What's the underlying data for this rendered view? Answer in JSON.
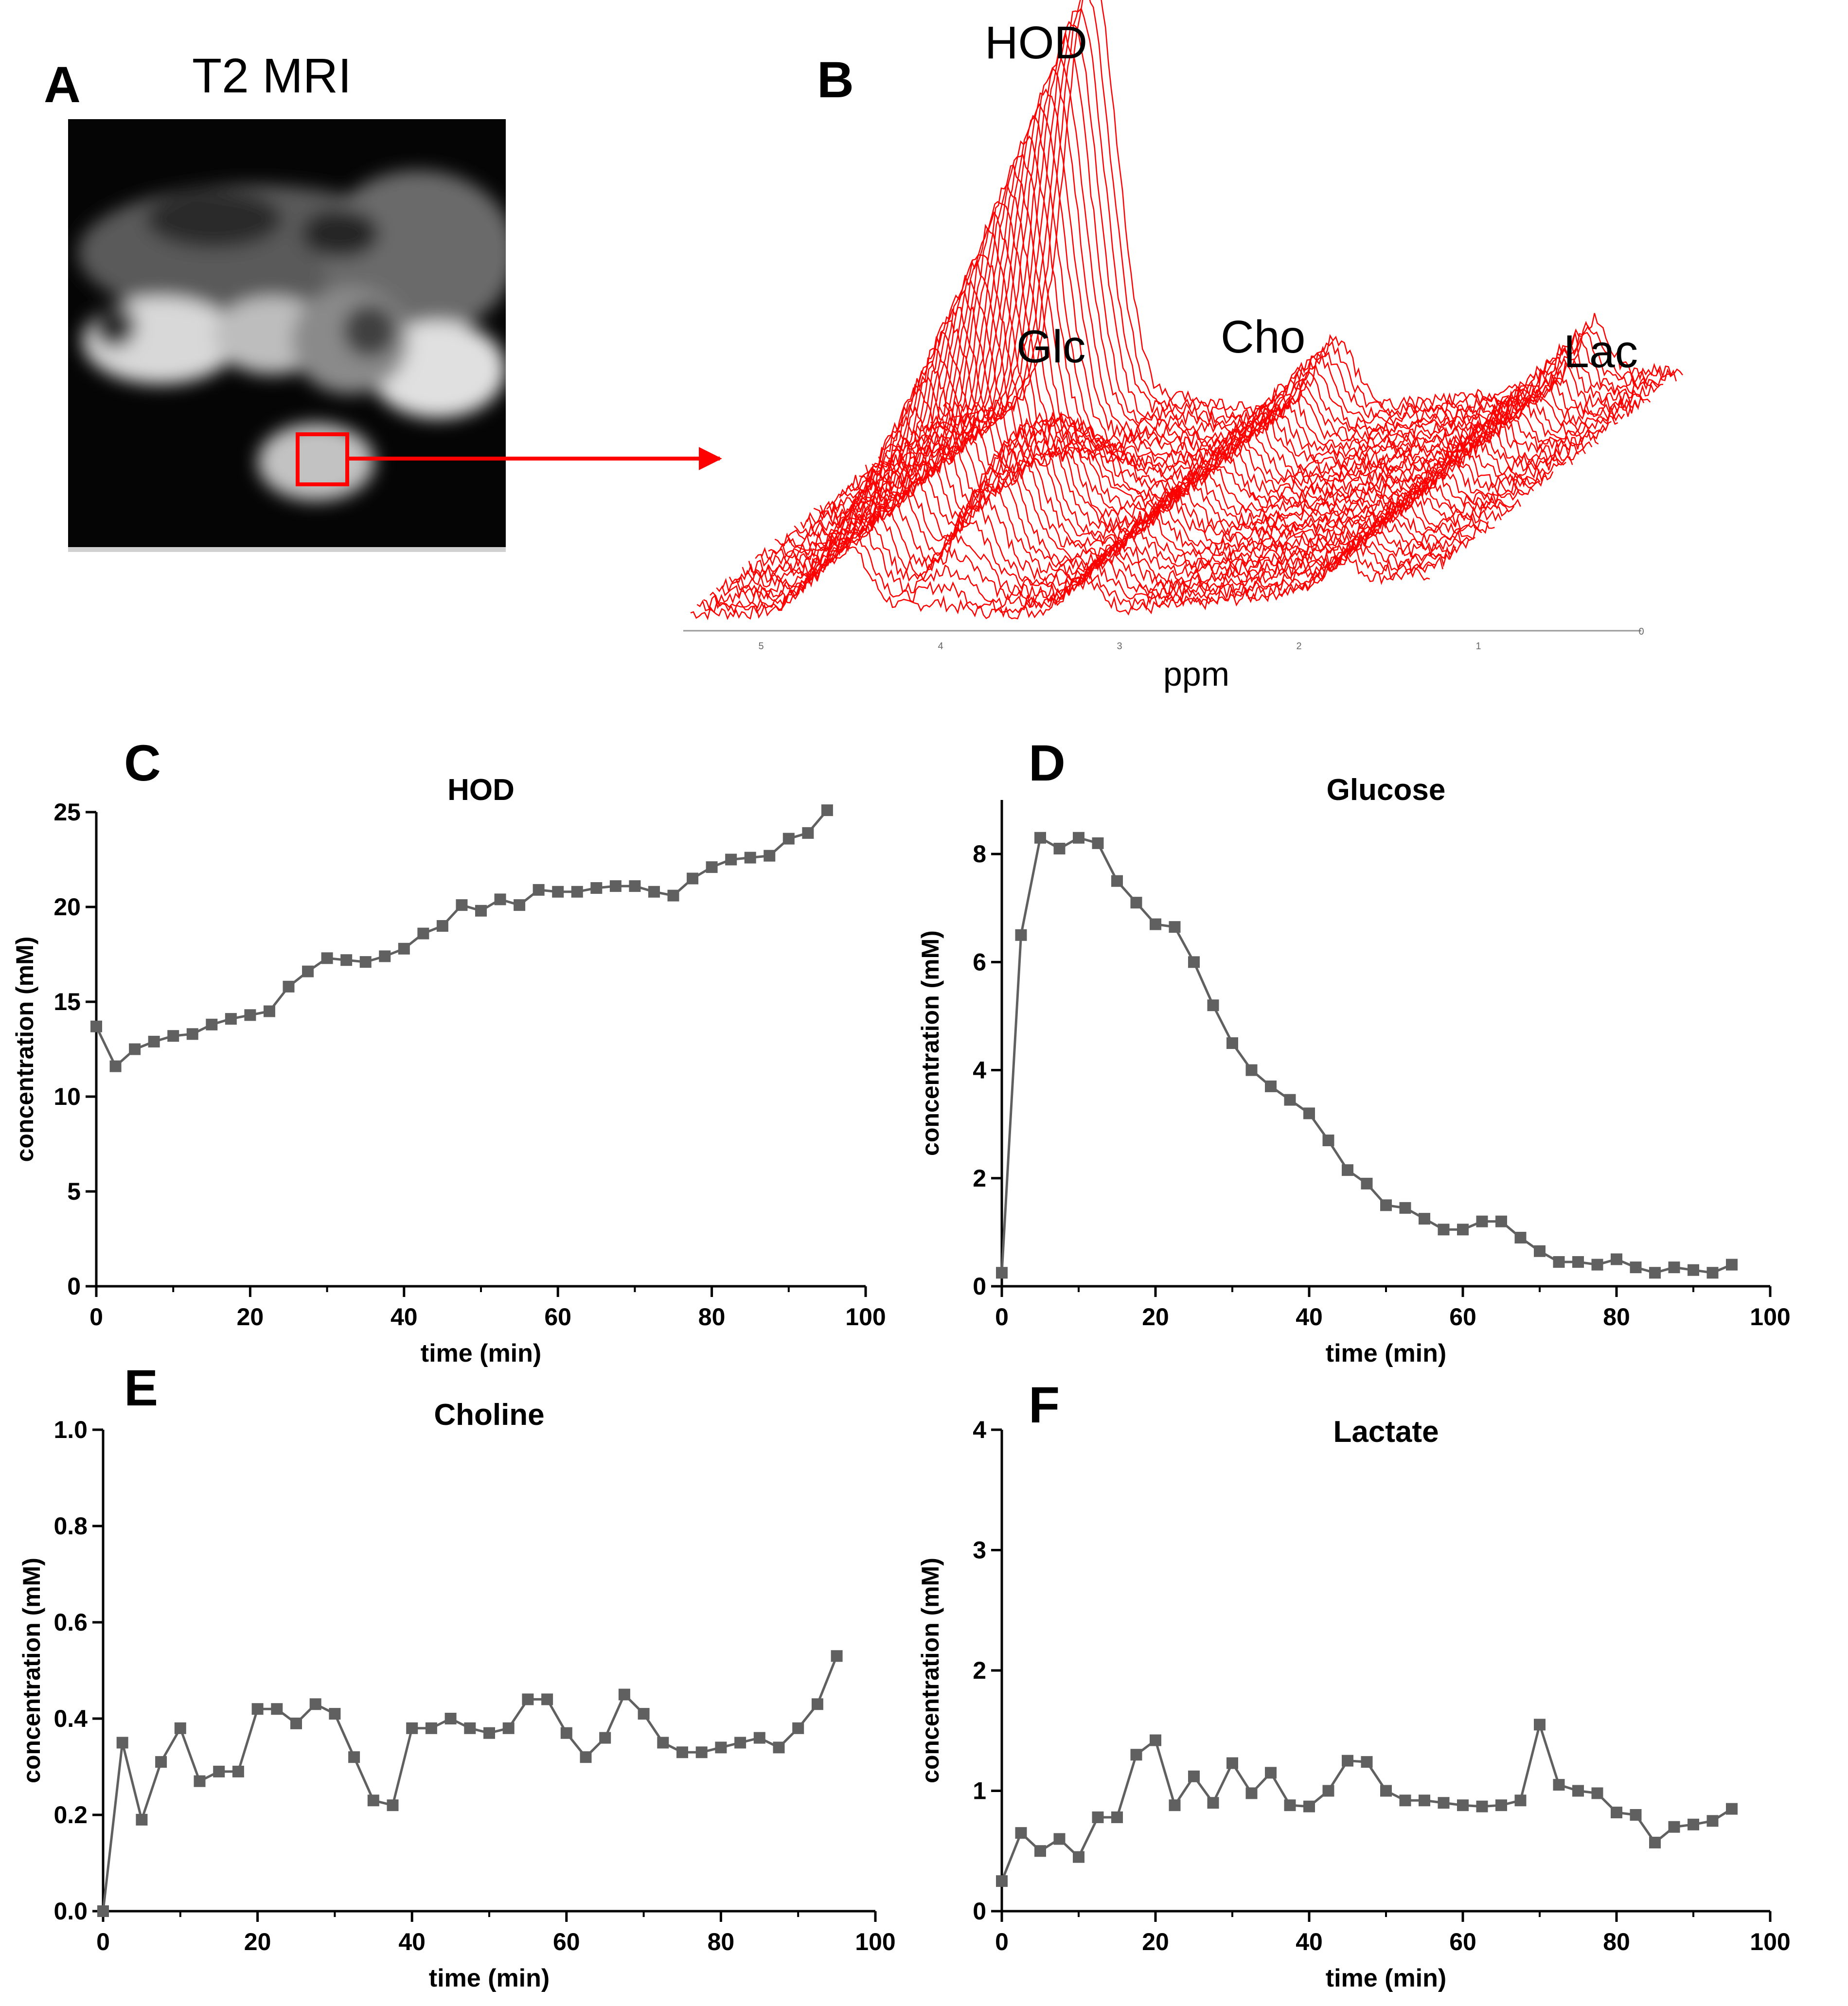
{
  "panels": {
    "A": {
      "letter": "A",
      "title": "T2 MRI"
    },
    "B": {
      "letter": "B",
      "peak_labels": [
        "HOD",
        "Glc",
        "Cho",
        "Lac"
      ],
      "x_ticks": [
        "5",
        "4",
        "3",
        "2",
        "1",
        "0"
      ],
      "xlabel": "ppm",
      "trace_color": "#ff0000",
      "arrow_color": "#ff0000"
    },
    "C": {
      "letter": "C"
    },
    "D": {
      "letter": "D"
    },
    "E": {
      "letter": "E"
    },
    "F": {
      "letter": "F"
    }
  },
  "chart_data": [
    {
      "panel": "C",
      "type": "line",
      "title": "HOD",
      "xlabel": "time (min)",
      "ylabel": "concentration (mM)",
      "xlim": [
        0,
        100
      ],
      "ylim": [
        0,
        25
      ],
      "xticks": [
        0,
        20,
        40,
        60,
        80,
        100
      ],
      "yticks": [
        0,
        5,
        10,
        15,
        20,
        25
      ],
      "marker": "square",
      "color": "#606060",
      "x": [
        0,
        2.5,
        5,
        7.5,
        10,
        12.5,
        15,
        17.5,
        20,
        22.5,
        25,
        27.5,
        30,
        32.5,
        35,
        37.5,
        40,
        42.5,
        45,
        47.5,
        50,
        52.5,
        55,
        57.5,
        60,
        62.5,
        65,
        67.5,
        70,
        72.5,
        75,
        77.5,
        80,
        82.5,
        85,
        87.5,
        90,
        92.5,
        95
      ],
      "y": [
        13.7,
        11.6,
        12.5,
        12.9,
        13.2,
        13.3,
        13.8,
        14.1,
        14.3,
        14.5,
        15.8,
        16.6,
        17.3,
        17.2,
        17.1,
        17.4,
        17.8,
        18.6,
        19.0,
        20.1,
        19.8,
        20.4,
        20.1,
        20.9,
        20.8,
        20.8,
        21.0,
        21.1,
        21.1,
        20.8,
        20.6,
        21.5,
        22.1,
        22.5,
        22.6,
        22.7,
        23.6,
        23.9,
        25.1
      ]
    },
    {
      "panel": "D",
      "type": "line",
      "title": "Glucose",
      "xlabel": "time (min)",
      "ylabel": "concentration (mM)",
      "xlim": [
        0,
        100
      ],
      "ylim": [
        0,
        9
      ],
      "xticks": [
        0,
        20,
        40,
        60,
        80,
        100
      ],
      "yticks": [
        0,
        2,
        4,
        6,
        8
      ],
      "marker": "square",
      "color": "#606060",
      "x": [
        0,
        2.5,
        5,
        7.5,
        10,
        12.5,
        15,
        17.5,
        20,
        22.5,
        25,
        27.5,
        30,
        32.5,
        35,
        37.5,
        40,
        42.5,
        45,
        47.5,
        50,
        52.5,
        55,
        57.5,
        60,
        62.5,
        65,
        67.5,
        70,
        72.5,
        75,
        77.5,
        80,
        82.5,
        85,
        87.5,
        90,
        92.5,
        95
      ],
      "y": [
        0.25,
        6.5,
        8.3,
        8.1,
        8.3,
        8.2,
        7.5,
        7.1,
        6.7,
        6.65,
        6.0,
        5.2,
        4.5,
        4.0,
        3.7,
        3.45,
        3.2,
        2.7,
        2.15,
        1.9,
        1.5,
        1.45,
        1.25,
        1.05,
        1.05,
        1.2,
        1.2,
        0.9,
        0.65,
        0.45,
        0.45,
        0.4,
        0.5,
        0.35,
        0.25,
        0.35,
        0.3,
        0.25,
        0.4
      ]
    },
    {
      "panel": "E",
      "type": "line",
      "title": "Choline",
      "xlabel": "time (min)",
      "ylabel": "concentration (mM)",
      "xlim": [
        0,
        100
      ],
      "ylim": [
        0,
        1.0
      ],
      "xticks": [
        0,
        20,
        40,
        60,
        80,
        100
      ],
      "yticks": [
        0.0,
        0.2,
        0.4,
        0.6,
        0.8,
        1.0
      ],
      "yticks_labels": [
        "0.0",
        "0.2",
        "0.4",
        "0.6",
        "0.8",
        "1.0"
      ],
      "marker": "square",
      "color": "#606060",
      "x": [
        0,
        2.5,
        5,
        7.5,
        10,
        12.5,
        15,
        17.5,
        20,
        22.5,
        25,
        27.5,
        30,
        32.5,
        35,
        37.5,
        40,
        42.5,
        45,
        47.5,
        50,
        52.5,
        55,
        57.5,
        60,
        62.5,
        65,
        67.5,
        70,
        72.5,
        75,
        77.5,
        80,
        82.5,
        85,
        87.5,
        90,
        92.5,
        95
      ],
      "y": [
        0.0,
        0.35,
        0.19,
        0.31,
        0.38,
        0.27,
        0.29,
        0.29,
        0.42,
        0.42,
        0.39,
        0.43,
        0.41,
        0.32,
        0.23,
        0.22,
        0.38,
        0.38,
        0.4,
        0.38,
        0.37,
        0.38,
        0.44,
        0.44,
        0.37,
        0.32,
        0.36,
        0.45,
        0.41,
        0.35,
        0.33,
        0.33,
        0.34,
        0.35,
        0.36,
        0.34,
        0.38,
        0.43,
        0.53
      ]
    },
    {
      "panel": "F",
      "type": "line",
      "title": "Lactate",
      "xlabel": "time (min)",
      "ylabel": "concentration (mM)",
      "xlim": [
        0,
        100
      ],
      "ylim": [
        0,
        4
      ],
      "xticks": [
        0,
        20,
        40,
        60,
        80,
        100
      ],
      "yticks": [
        0,
        1,
        2,
        3,
        4
      ],
      "marker": "square",
      "color": "#606060",
      "x": [
        0,
        2.5,
        5,
        7.5,
        10,
        12.5,
        15,
        17.5,
        20,
        22.5,
        25,
        27.5,
        30,
        32.5,
        35,
        37.5,
        40,
        42.5,
        45,
        47.5,
        50,
        52.5,
        55,
        57.5,
        60,
        62.5,
        65,
        67.5,
        70,
        72.5,
        75,
        77.5,
        80,
        82.5,
        85,
        87.5,
        90,
        92.5,
        95
      ],
      "y": [
        0.25,
        0.65,
        0.5,
        0.6,
        0.45,
        0.78,
        0.78,
        1.3,
        1.42,
        0.88,
        1.12,
        0.9,
        1.23,
        0.98,
        1.15,
        0.88,
        0.87,
        1.0,
        1.25,
        1.24,
        1.0,
        0.92,
        0.92,
        0.9,
        0.88,
        0.87,
        0.88,
        0.92,
        1.55,
        1.05,
        1.0,
        0.98,
        0.82,
        0.8,
        0.57,
        0.7,
        0.72,
        0.75,
        0.85
      ]
    }
  ]
}
